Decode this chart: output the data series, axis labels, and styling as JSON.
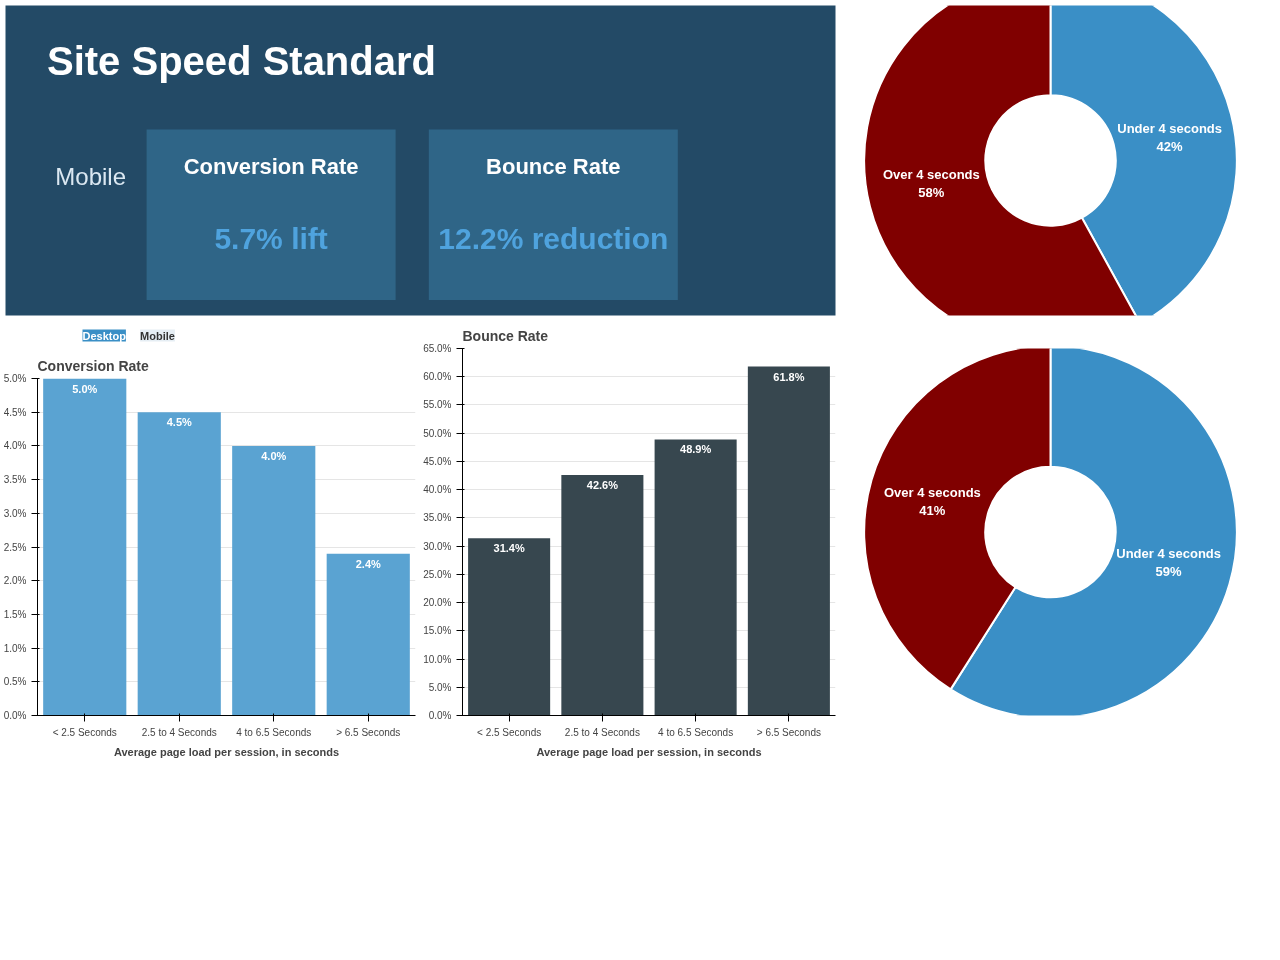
{
  "chart_data": [
    {
      "type": "other",
      "title": "Site Speed Standard",
      "annotations": [
        "Mobile",
        "Conversion Rate",
        "5.7% lift",
        "Bounce Rate",
        "12.2% reduction"
      ]
    },
    {
      "type": "donut",
      "categories": [
        "Under 4 seconds",
        "Over 4 seconds"
      ],
      "values": [
        42,
        58
      ],
      "value_labels": [
        "42%",
        "58%"
      ],
      "colors": [
        "#3a8fc6",
        "#800000"
      ]
    },
    {
      "type": "bar",
      "title": "Conversion Rate",
      "xlabel": "Average page load per session, in seconds",
      "annotations": [
        "Desktop",
        "Mobile"
      ],
      "categories": [
        "< 2.5 Seconds",
        "2.5 to 4 Seconds",
        "4 to 6.5 Seconds",
        "> 6.5 Seconds"
      ],
      "values": [
        5.0,
        4.5,
        4.0,
        2.4
      ],
      "value_labels": [
        "5.0%",
        "4.5%",
        "4.0%",
        "2.4%"
      ],
      "color": "#5aa3d2",
      "ylim": [
        0,
        5
      ],
      "yticks": [
        {
          "value": 0,
          "label": "0.0%"
        },
        {
          "value": 0.5,
          "label": "0.5%"
        },
        {
          "value": 1,
          "label": "1.0%"
        },
        {
          "value": 1.5,
          "label": "1.5%"
        },
        {
          "value": 2,
          "label": "2.0%"
        },
        {
          "value": 2.5,
          "label": "2.5%"
        },
        {
          "value": 3,
          "label": "3.0%"
        },
        {
          "value": 3.5,
          "label": "3.5%"
        },
        {
          "value": 4,
          "label": "4.0%"
        },
        {
          "value": 4.5,
          "label": "4.5%"
        },
        {
          "value": 5,
          "label": "5.0%"
        }
      ],
      "grid": "y"
    },
    {
      "type": "bar",
      "title": "Bounce Rate",
      "xlabel": "Average page load per session, in seconds",
      "categories": [
        "< 2.5 Seconds",
        "2.5 to 4 Seconds",
        "4 to 6.5 Seconds",
        "> 6.5 Seconds"
      ],
      "values": [
        31.4,
        42.6,
        48.9,
        61.8
      ],
      "value_labels": [
        "31.4%",
        "42.6%",
        "48.9%",
        "61.8%"
      ],
      "color": "#37474f",
      "ylim": [
        0,
        65
      ],
      "yticks": [
        {
          "value": 0,
          "label": "0.0%"
        },
        {
          "value": 5,
          "label": "5.0%"
        },
        {
          "value": 10,
          "label": "10.0%"
        },
        {
          "value": 15,
          "label": "15.0%"
        },
        {
          "value": 20,
          "label": "20.0%"
        },
        {
          "value": 25,
          "label": "25.0%"
        },
        {
          "value": 30,
          "label": "30.0%"
        },
        {
          "value": 35,
          "label": "35.0%"
        },
        {
          "value": 40,
          "label": "40.0%"
        },
        {
          "value": 45,
          "label": "45.0%"
        },
        {
          "value": 50,
          "label": "50.0%"
        },
        {
          "value": 55,
          "label": "55.0%"
        },
        {
          "value": 60,
          "label": "60.0%"
        },
        {
          "value": 65,
          "label": "65.0%"
        }
      ],
      "grid": "y"
    },
    {
      "type": "donut",
      "categories": [
        "Under 4 seconds",
        "Over 4 seconds"
      ],
      "values": [
        59,
        41
      ],
      "value_labels": [
        "59%",
        "41%"
      ],
      "colors": [
        "#3a8fc6",
        "#800000"
      ]
    }
  ]
}
